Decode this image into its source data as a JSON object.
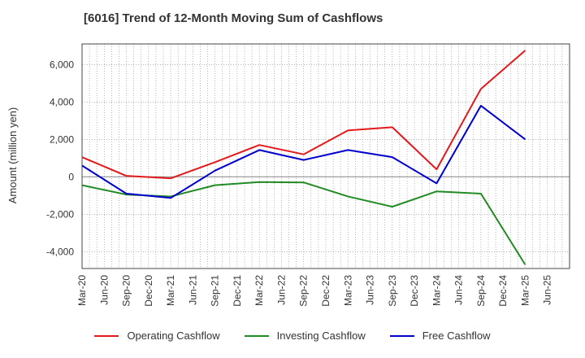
{
  "chart_data": {
    "type": "line",
    "title": "[6016]  Trend of 12-Month Moving Sum of Cashflows",
    "ylabel": "Amount (million yen)",
    "xlabel": "",
    "x_ticks": [
      "Mar-20",
      "Jun-20",
      "Sep-20",
      "Dec-20",
      "Mar-21",
      "Jun-21",
      "Sep-21",
      "Dec-21",
      "Mar-22",
      "Jun-22",
      "Sep-22",
      "Dec-22",
      "Mar-23",
      "Jun-23",
      "Sep-23",
      "Dec-23",
      "Mar-24",
      "Jun-24",
      "Sep-24",
      "Dec-24",
      "Mar-25",
      "Jun-25"
    ],
    "y_ticks": [
      6000,
      4000,
      2000,
      0,
      -2000,
      -4000
    ],
    "y_tick_labels": [
      "6,000",
      "4,000",
      "2,000",
      "0",
      "-2,000",
      "-4,000"
    ],
    "ylim": [
      -4900,
      7100
    ],
    "grid": true,
    "legend_position": "bottom",
    "x": [
      "Mar-20",
      "Sep-20",
      "Mar-21",
      "Sep-21",
      "Mar-22",
      "Sep-22",
      "Mar-23",
      "Sep-23",
      "Mar-24",
      "Sep-24",
      "Mar-25"
    ],
    "series": [
      {
        "name": "Operating Cashflow",
        "color": "#e31a1c",
        "values": [
          1050,
          50,
          -80,
          780,
          1700,
          1200,
          2480,
          2650,
          400,
          4700,
          6750
        ]
      },
      {
        "name": "Investing Cashflow",
        "color": "#238b23",
        "values": [
          -450,
          -950,
          -1050,
          -450,
          -280,
          -300,
          -1050,
          -1600,
          -780,
          -900,
          -4700
        ]
      },
      {
        "name": "Free Cashflow",
        "color": "#0000cc",
        "values": [
          600,
          -900,
          -1130,
          330,
          1430,
          900,
          1430,
          1050,
          -350,
          3800,
          2000
        ]
      }
    ]
  }
}
